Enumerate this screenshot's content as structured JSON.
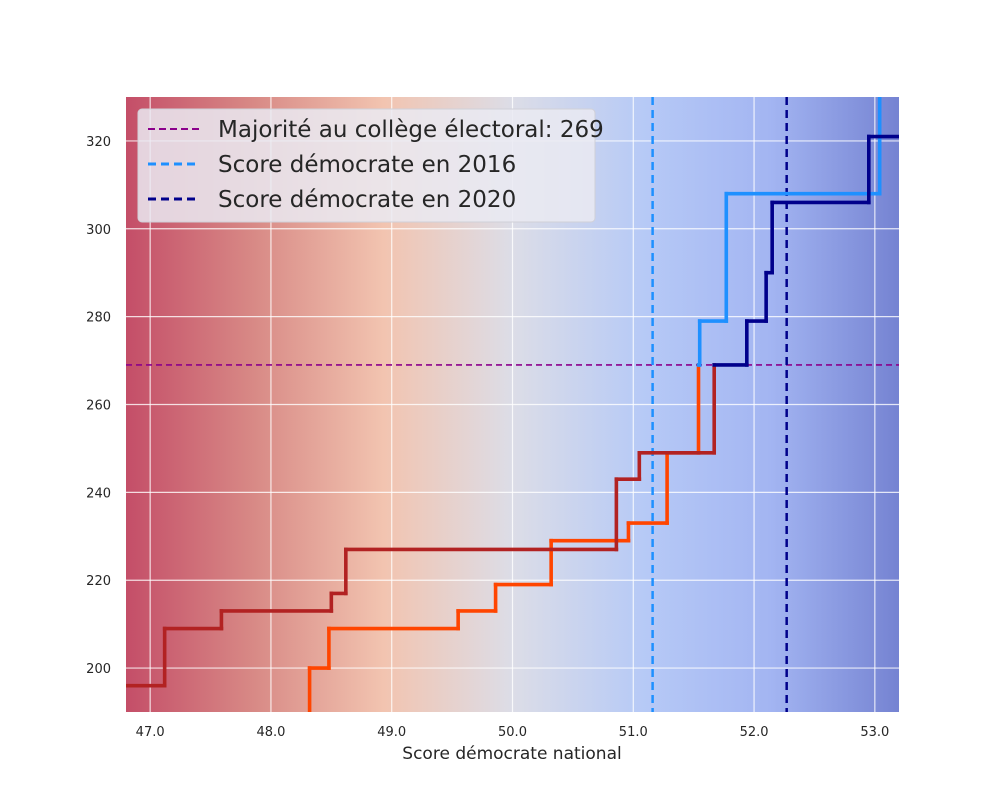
{
  "chart_data": {
    "type": "line",
    "title": "",
    "xlabel": "Score démocrate national",
    "ylabel": "",
    "xlim": [
      46.8,
      53.2
    ],
    "ylim": [
      190,
      330
    ],
    "xticks": [
      47.0,
      48.0,
      49.0,
      50.0,
      51.0,
      52.0,
      53.0
    ],
    "xtick_labels": [
      "47.0",
      "48.0",
      "49.0",
      "50.0",
      "51.0",
      "52.0",
      "53.0"
    ],
    "yticks": [
      200,
      220,
      240,
      260,
      280,
      300,
      320
    ],
    "ytick_labels": [
      "200",
      "220",
      "240",
      "260",
      "280",
      "300",
      "320"
    ],
    "grid": true,
    "background_gradient": [
      "#c44e68",
      "#d88a86",
      "#f2c4b0",
      "#dcdde7",
      "#b7caf6",
      "#a3b5f2",
      "#7583d2"
    ],
    "legend_position": "top-left",
    "reference_lines": [
      {
        "orientation": "horizontal",
        "value": 269,
        "style": "dashed",
        "color": "#8b008b",
        "label": "Majorité au collège électoral: 269"
      },
      {
        "orientation": "vertical",
        "value": 51.16,
        "style": "dashed",
        "color": "#1e90ff",
        "label": "Score démocrate en 2016"
      },
      {
        "orientation": "vertical",
        "value": 52.27,
        "style": "dashed",
        "color": "#00008b",
        "label": "Score démocrate en 2020"
      }
    ],
    "series": [
      {
        "color_below": "#ff4500",
        "color_above": "#1e90ff",
        "x": [
          48.32,
          48.32,
          48.48,
          48.48,
          49.55,
          49.55,
          49.86,
          49.86,
          50.32,
          50.32,
          50.96,
          50.96,
          51.28,
          51.28,
          51.54,
          51.54,
          51.55,
          51.55,
          51.77,
          51.77,
          53.04,
          53.04
        ],
        "y": [
          190,
          200,
          200,
          209,
          209,
          213,
          213,
          219,
          219,
          229,
          229,
          233,
          233,
          249,
          249,
          269,
          269,
          279,
          279,
          308,
          308,
          330
        ]
      },
      {
        "color_below": "#b22222",
        "color_above": "#00008b",
        "x": [
          46.8,
          47.12,
          47.12,
          47.59,
          47.59,
          48.5,
          48.5,
          48.62,
          48.62,
          50.86,
          50.86,
          51.05,
          51.05,
          51.67,
          51.67,
          51.94,
          51.94,
          52.1,
          52.1,
          52.15,
          52.15,
          52.95,
          52.95,
          53.2
        ],
        "y": [
          196,
          196,
          209,
          209,
          213,
          213,
          217,
          217,
          227,
          227,
          243,
          243,
          249,
          249,
          269,
          269,
          279,
          279,
          290,
          290,
          306,
          306,
          321,
          321
        ]
      }
    ]
  }
}
